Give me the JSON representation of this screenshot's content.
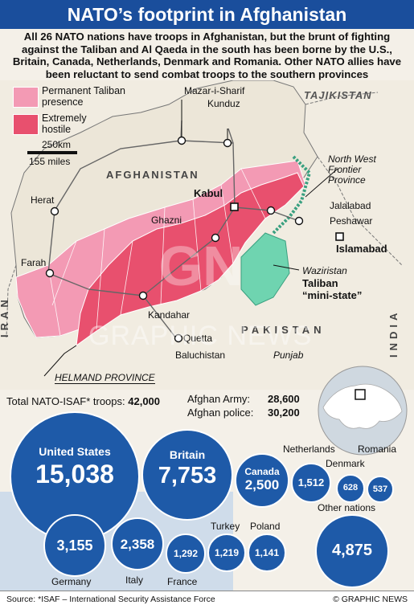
{
  "title": "NATO’s footprint in Afghanistan",
  "intro": "All 26 NATO nations have troops in Afghanistan, but the brunt of fighting against the Taliban and Al Qaeda in the south has been borne by the U.S., Britain, Canada, Netherlands, Denmark and Romania. Other NATO allies have been reluctant to send combat troops to the southern provinces",
  "legend": {
    "permanent": "Permanent Taliban presence",
    "hostile": "Extremely hostile",
    "permanent_color": "#f39ab4",
    "hostile_color": "#e8506e"
  },
  "scale": {
    "km": "250km",
    "miles": "155 miles"
  },
  "map_labels": {
    "afghanistan": "AFGHANISTAN",
    "pakistan": "PAKISTAN",
    "tajikistan": "TAJIKISTAN",
    "iran": "IRAN",
    "india": "INDIA",
    "mazar": "Mazar-i-Sharif",
    "kunduz": "Kunduz",
    "herat": "Herat",
    "kabul": "Kabul",
    "ghazni": "Ghazni",
    "farah": "Farah",
    "kandahar": "Kandahar",
    "quetta": "Quetta",
    "jalalabad": "Jalalabad",
    "peshawar": "Peshawar",
    "islamabad": "Islamabad",
    "nwfp": "North West Frontier Province",
    "waziristan_1": "Waziristan",
    "waziristan_2": "Taliban",
    "waziristan_3": "“mini-state”",
    "baluchistan": "Baluchistan",
    "punjab": "Punjab",
    "helmand": "HELMAND PROVINCE",
    "watermark": "GRAPHIC NEWS"
  },
  "totals": {
    "nato_label": "Total NATO-ISAF* troops:",
    "nato_value": "42,000",
    "army_label": "Afghan Army:",
    "army_value": "28,600",
    "police_label": "Afghan police:",
    "police_value": "30,200"
  },
  "troops": [
    {
      "name": "United States",
      "value": "15,038"
    },
    {
      "name": "Britain",
      "value": "7,753"
    },
    {
      "name": "Canada",
      "value": "2,500"
    },
    {
      "name": "Netherlands",
      "value": "1,512"
    },
    {
      "name": "Denmark",
      "value": "628"
    },
    {
      "name": "Romania",
      "value": "537"
    },
    {
      "name": "Germany",
      "value": "3,155"
    },
    {
      "name": "Italy",
      "value": "2,358"
    },
    {
      "name": "France",
      "value": "1,292"
    },
    {
      "name": "Turkey",
      "value": "1,219"
    },
    {
      "name": "Poland",
      "value": "1,141"
    },
    {
      "name": "Other nations",
      "value": "4,875"
    }
  ],
  "footer": {
    "source": "Source: *ISAF – International Security Assistance Force",
    "credit": "© GRAPHIC NEWS"
  }
}
